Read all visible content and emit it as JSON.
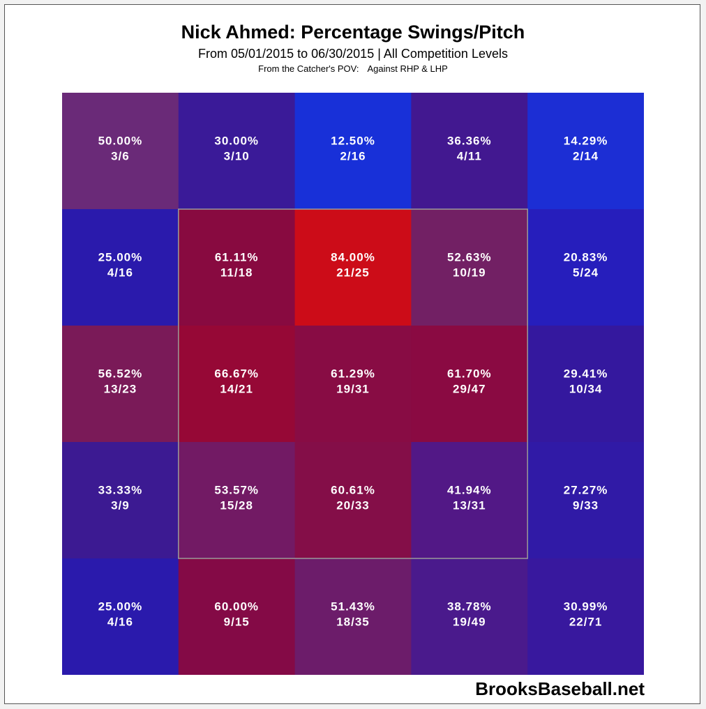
{
  "title": "Nick Ahmed: Percentage Swings/Pitch",
  "subtitle": "From 05/01/2015 to 06/30/2015 | All Competition Levels",
  "pov": {
    "view": "From the Catcher's POV:",
    "against": "Against RHP & LHP"
  },
  "watermark": "BrooksBaseball.net",
  "chart_data": {
    "type": "heatmap",
    "rows": 5,
    "cols": 5,
    "strike_zone": {
      "rows": [
        1,
        3
      ],
      "cols": [
        1,
        3
      ]
    },
    "color_scale": {
      "low": "#1030e0",
      "high": "#d8101c"
    },
    "cells": [
      [
        {
          "pct": "50.00%",
          "frac": "3/6",
          "color": "#6a2a78"
        },
        {
          "pct": "30.00%",
          "frac": "3/10",
          "color": "#3a1a98"
        },
        {
          "pct": "12.50%",
          "frac": "2/16",
          "color": "#1830d8"
        },
        {
          "pct": "36.36%",
          "frac": "4/11",
          "color": "#421890"
        },
        {
          "pct": "14.29%",
          "frac": "2/14",
          "color": "#1c2ed4"
        }
      ],
      [
        {
          "pct": "25.00%",
          "frac": "4/16",
          "color": "#2a1aac"
        },
        {
          "pct": "61.11%",
          "frac": "11/18",
          "color": "#880a40"
        },
        {
          "pct": "84.00%",
          "frac": "21/25",
          "color": "#cc0c18"
        },
        {
          "pct": "52.63%",
          "frac": "10/19",
          "color": "#722064"
        },
        {
          "pct": "20.83%",
          "frac": "5/24",
          "color": "#261ebc"
        }
      ],
      [
        {
          "pct": "56.52%",
          "frac": "13/23",
          "color": "#7a1a58"
        },
        {
          "pct": "66.67%",
          "frac": "14/21",
          "color": "#960836"
        },
        {
          "pct": "61.29%",
          "frac": "19/31",
          "color": "#880c44"
        },
        {
          "pct": "61.70%",
          "frac": "29/47",
          "color": "#8a0a42"
        },
        {
          "pct": "29.41%",
          "frac": "10/34",
          "color": "#34189e"
        }
      ],
      [
        {
          "pct": "33.33%",
          "frac": "3/9",
          "color": "#3c1a92"
        },
        {
          "pct": "53.57%",
          "frac": "15/28",
          "color": "#721a64"
        },
        {
          "pct": "60.61%",
          "frac": "20/33",
          "color": "#840e48"
        },
        {
          "pct": "41.94%",
          "frac": "13/31",
          "color": "#521886"
        },
        {
          "pct": "27.27%",
          "frac": "9/33",
          "color": "#301aa6"
        }
      ],
      [
        {
          "pct": "25.00%",
          "frac": "4/16",
          "color": "#2a1aac"
        },
        {
          "pct": "60.00%",
          "frac": "9/15",
          "color": "#840a46"
        },
        {
          "pct": "51.43%",
          "frac": "18/35",
          "color": "#6c1c6a"
        },
        {
          "pct": "38.78%",
          "frac": "19/49",
          "color": "#4a1a8c"
        },
        {
          "pct": "30.99%",
          "frac": "22/71",
          "color": "#38189e"
        }
      ]
    ]
  }
}
